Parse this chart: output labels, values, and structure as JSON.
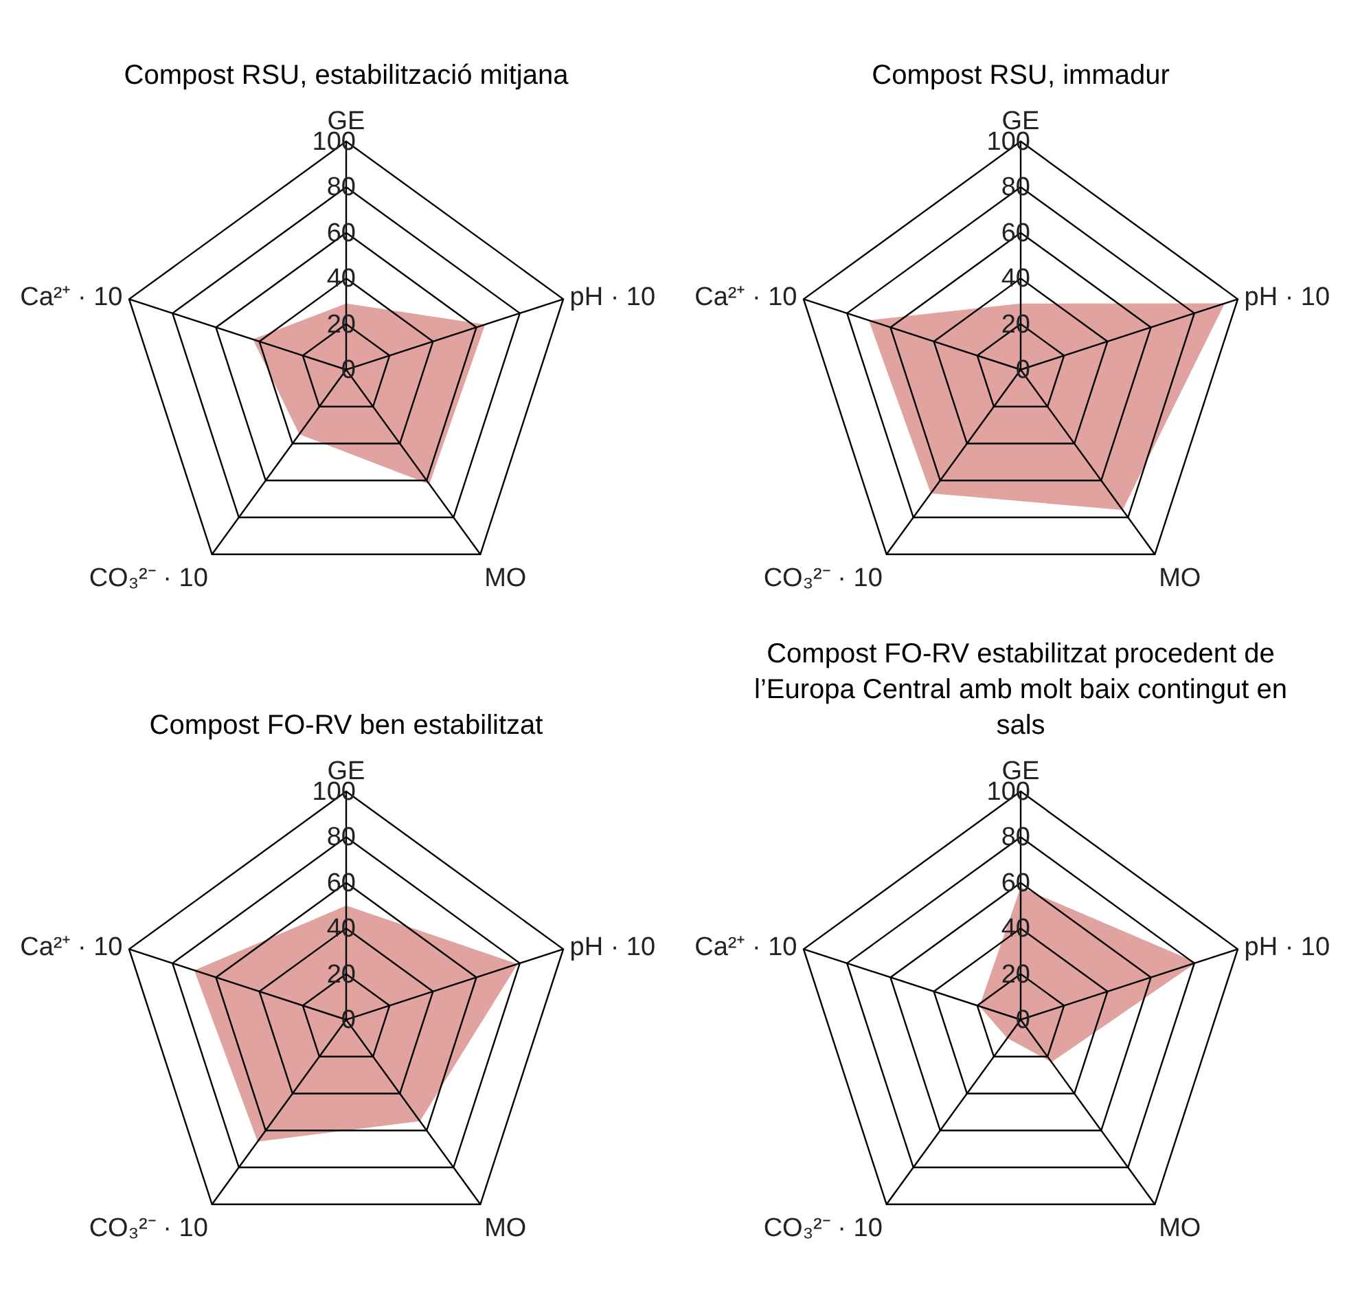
{
  "chart_data": [
    {
      "type": "radar",
      "title": "Compost RSU, estabilització mitjana",
      "categories": [
        "GE",
        "pH · 10",
        "MO",
        "CO₃²⁻ · 10",
        "Ca²⁺ · 10"
      ],
      "ylim": [
        0,
        100
      ],
      "yticks": [
        0,
        20,
        40,
        60,
        80,
        100
      ],
      "grid": true,
      "series": [
        {
          "color": "#e0a39f",
          "values": [
            29,
            64,
            62,
            35,
            43
          ]
        }
      ]
    },
    {
      "type": "radar",
      "title": "Compost RSU, immadur",
      "categories": [
        "GE",
        "pH · 10",
        "MO",
        "CO₃²⁻ · 10",
        "Ca²⁺ · 10"
      ],
      "ylim": [
        0,
        100
      ],
      "yticks": [
        0,
        20,
        40,
        60,
        80,
        100
      ],
      "grid": true,
      "series": [
        {
          "color": "#e0a39f",
          "values": [
            29,
            94,
            76,
            67,
            70
          ]
        }
      ]
    },
    {
      "type": "radar",
      "title": "Compost FO-RV ben estabilitzat",
      "categories": [
        "GE",
        "pH · 10",
        "MO",
        "CO₃²⁻ · 10",
        "Ca²⁺ · 10"
      ],
      "ylim": [
        0,
        100
      ],
      "yticks": [
        0,
        20,
        40,
        60,
        80,
        100
      ],
      "grid": true,
      "series": [
        {
          "color": "#e0a39f",
          "values": [
            50,
            79,
            55,
            66,
            70
          ]
        }
      ]
    },
    {
      "type": "radar",
      "title": "Compost FO-RV estabilitzat procedent de l’Europa Central amb molt baix contingut en sals",
      "categories": [
        "GE",
        "pH · 10",
        "MO",
        "CO₃²⁻ · 10",
        "Ca²⁺ · 10"
      ],
      "ylim": [
        0,
        100
      ],
      "yticks": [
        0,
        20,
        40,
        60,
        80,
        100
      ],
      "grid": true,
      "series": [
        {
          "color": "#e0a39f",
          "values": [
            58,
            81,
            23,
            10,
            19
          ]
        }
      ]
    }
  ]
}
